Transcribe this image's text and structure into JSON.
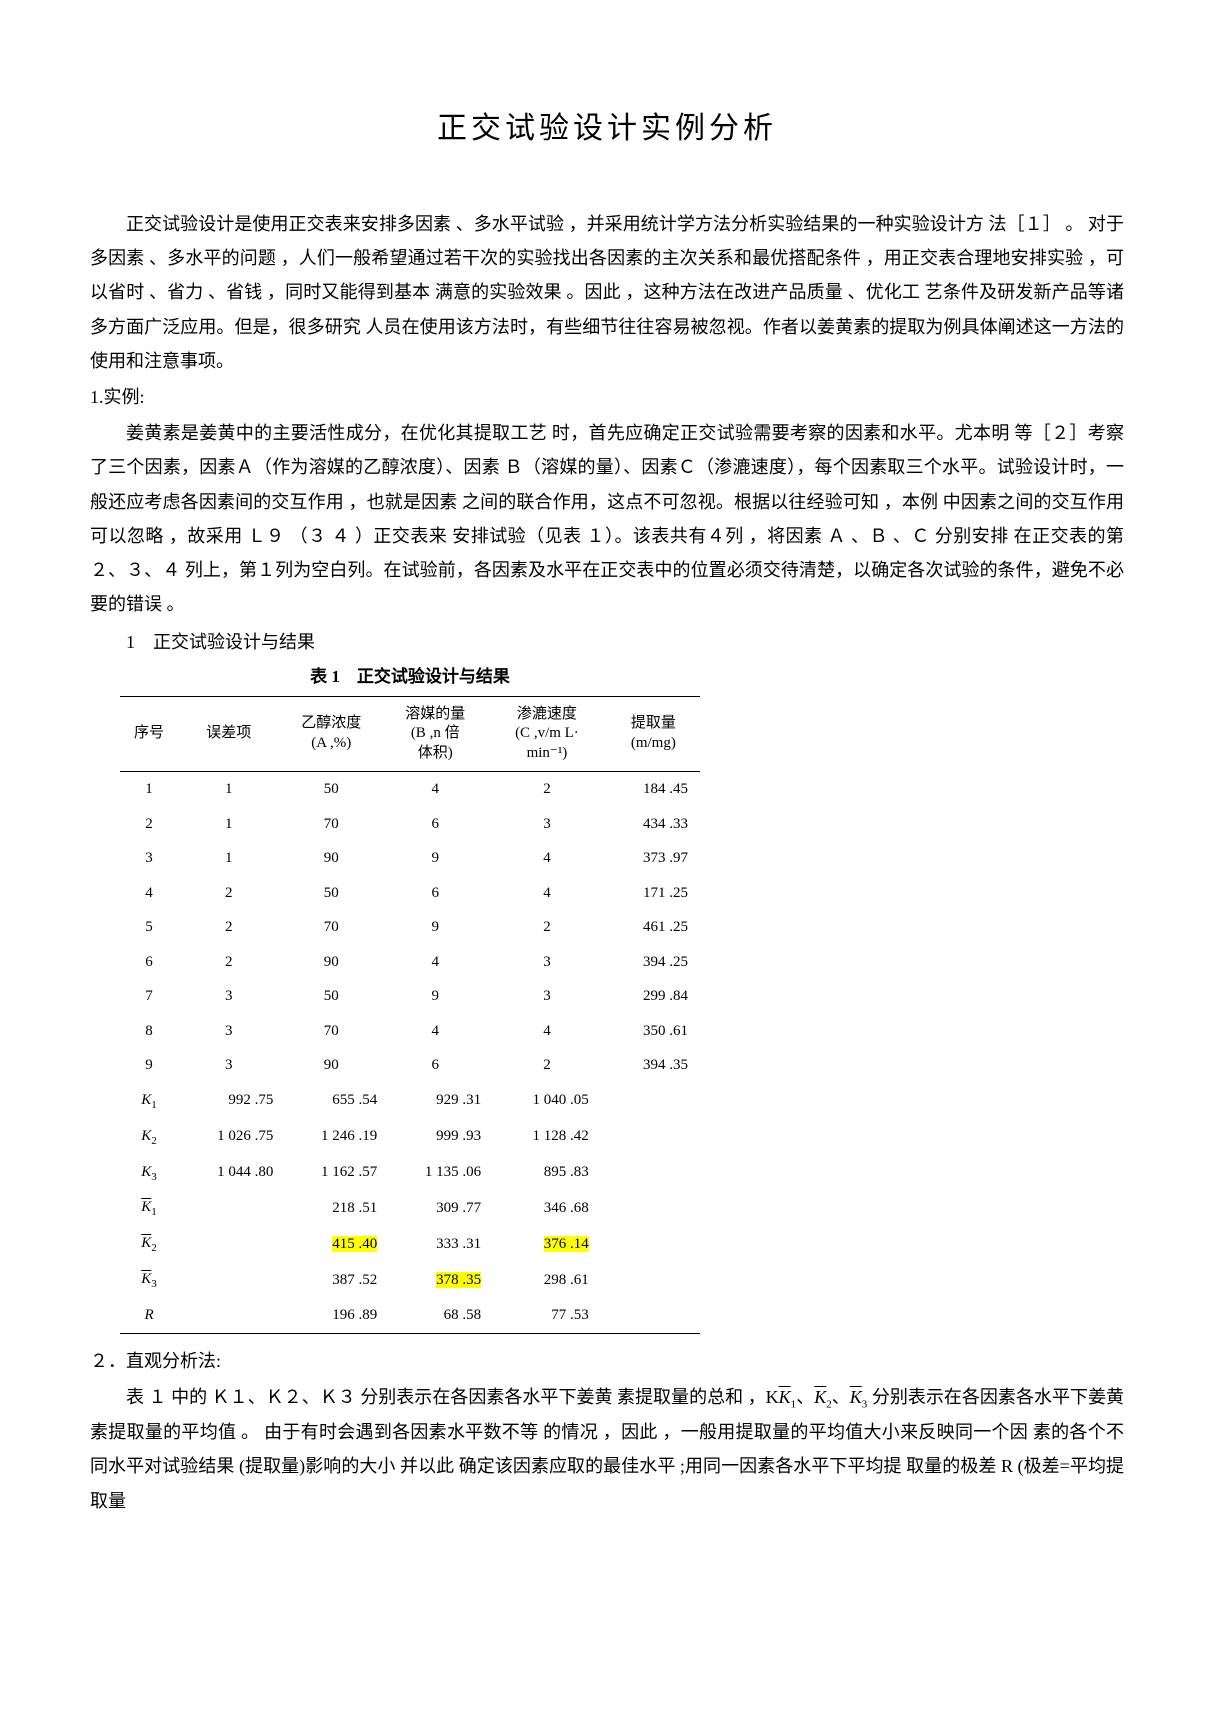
{
  "title": "正交试验设计实例分析",
  "para1": "正交试验设计是使用正交表来安排多因素 、多水平试验 ，并采用统计学方法分析实验结果的一种实验设计方 法［１］ 。 对于多因素 、多水平的问题 ，人们一般希望通过若干次的实验找出各因素的主次关系和最优搭配条件 ，用正交表合理地安排实验 ，可以省时 、省力 、省钱 ，同时又能得到基本 满意的实验效果 。因此 ，这种方法在改进产品质量 、优化工 艺条件及研发新产品等诸多方面广泛应用。但是，很多研究 人员在使用该方法时，有些细节往往容易被忽视。作者以姜黄素的提取为例具体阐述这一方法的使用和注意事项。",
  "section1_label": "1.实例:",
  "para2": "姜黄素是姜黄中的主要活性成分，在优化其提取工艺 时，首先应确定正交试验需要考察的因素和水平。尤本明 等［２］考察了三个因素，因素Ａ（作为溶媒的乙醇浓度）、因素 Ｂ（溶媒的量）、因素Ｃ（渗漉速度），每个因素取三个水平。试验设计时，一般还应考虑各因素间的交互作用 ，也就是因素 之间的联合作用，这点不可忽视。根据以往经验可知 ，本例 中因素之间的交互作用可以忽略 ，故采用 Ｌ９ （３ ４ ）正交表来 安排试验（见表 １）。该表共有４列 ，将因素 Ａ 、Ｂ 、Ｃ 分别安排 在正交表的第２、３、４ 列上，第１列为空白列。在试验前，各因素及水平在正交表中的位置必须交待清楚，以确定各次试验的条件，避免不必要的错误 。",
  "table_caption_line": "1　正交试验设计与结果",
  "table_title": "表 1　正交试验设计与结果",
  "headers": {
    "seq": "序号",
    "err": "误差项",
    "a": "乙醇浓度\n(A ,%)",
    "b": "溶媒的量\n(B ,n 倍\n体积)",
    "c": "渗漉速度\n(C ,v/m L·\nmin⁻¹)",
    "extract": "提取量\n(m/mg)"
  },
  "rows": [
    {
      "seq": "1",
      "err": "1",
      "a": "50",
      "b": "4",
      "c": "2",
      "extract": "184 .45"
    },
    {
      "seq": "2",
      "err": "1",
      "a": "70",
      "b": "6",
      "c": "3",
      "extract": "434 .33"
    },
    {
      "seq": "3",
      "err": "1",
      "a": "90",
      "b": "9",
      "c": "4",
      "extract": "373 .97"
    },
    {
      "seq": "4",
      "err": "2",
      "a": "50",
      "b": "6",
      "c": "4",
      "extract": "171 .25"
    },
    {
      "seq": "5",
      "err": "2",
      "a": "70",
      "b": "9",
      "c": "2",
      "extract": "461 .25"
    },
    {
      "seq": "6",
      "err": "2",
      "a": "90",
      "b": "4",
      "c": "3",
      "extract": "394 .25"
    },
    {
      "seq": "7",
      "err": "3",
      "a": "50",
      "b": "9",
      "c": "3",
      "extract": "299 .84"
    },
    {
      "seq": "8",
      "err": "3",
      "a": "70",
      "b": "4",
      "c": "4",
      "extract": "350 .61"
    },
    {
      "seq": "9",
      "err": "3",
      "a": "90",
      "b": "6",
      "c": "2",
      "extract": "394 .35"
    }
  ],
  "krows": [
    {
      "label": "K₁",
      "err": "992 .75",
      "a": "655 .54",
      "b": "929 .31",
      "c": "1 040 .05",
      "extract": ""
    },
    {
      "label": "K₂",
      "err": "1 026 .75",
      "a": "1 246 .19",
      "b": "999 .93",
      "c": "1 128 .42",
      "extract": ""
    },
    {
      "label": "K₃",
      "err": "1 044 .80",
      "a": "1 162 .57",
      "b": "1 135 .06",
      "c": "895 .83",
      "extract": ""
    }
  ],
  "kbarrows": [
    {
      "label": "K̄₁",
      "err": "",
      "a": "218 .51",
      "b": "309 .77",
      "c": "346 .68",
      "hl_a": false,
      "hl_b": false,
      "hl_c": false
    },
    {
      "label": "K̄₂",
      "err": "",
      "a": "415 .40",
      "b": "333 .31",
      "c": "376 .14",
      "hl_a": true,
      "hl_b": false,
      "hl_c": true
    },
    {
      "label": "K̄₃",
      "err": "",
      "a": "387 .52",
      "b": "378 .35",
      "c": "298 .61",
      "hl_a": false,
      "hl_b": true,
      "hl_c": false
    }
  ],
  "rrow": {
    "label": "R",
    "err": "",
    "a": "196 .89",
    "b": "68 .58",
    "c": "77 .53"
  },
  "section2_label": "２．直观分析法:",
  "para3_prefix": "表 １ 中的 Ｋ１、Ｋ２、Ｋ３ 分别表示在各因素各水平下姜黄 素提取量的总和 ，K",
  "para3_mid": " 分别表示在各因素各水平下姜黄素提取量的平均值 。 由于有时会遇到各因素水平数不等 的情况 ，因此 ，一般用提取量的平均值大小来反映同一个因 素的各个不同水平对试验结果 (提取量)影响的大小 并以此 确定该因素应取的最佳水平 ;用同一因素各水平下平均提 取量的极差 R (极差=平均提取量",
  "highlight_color": "#ffff00"
}
